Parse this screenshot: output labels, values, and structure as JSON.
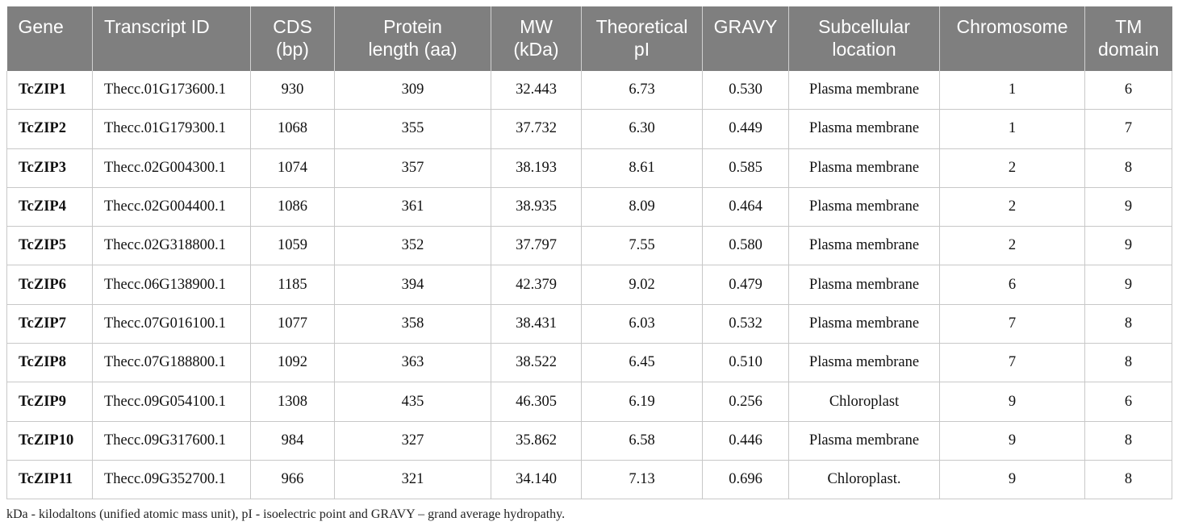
{
  "table": {
    "columns": [
      "Gene",
      "Transcript ID",
      "CDS (bp)",
      "Protein length (aa)",
      "MW (kDa)",
      "Theoretical pI",
      "GRAVY",
      "Subcellular location",
      "Chromosome",
      "TM domain"
    ],
    "rows": [
      [
        "TcZIP1",
        "Thecc.01G173600.1",
        "930",
        "309",
        "32.443",
        "6.73",
        "0.530",
        "Plasma membrane",
        "1",
        "6"
      ],
      [
        "TcZIP2",
        "Thecc.01G179300.1",
        "1068",
        "355",
        "37.732",
        "6.30",
        "0.449",
        "Plasma membrane",
        "1",
        "7"
      ],
      [
        "TcZIP3",
        "Thecc.02G004300.1",
        "1074",
        "357",
        "38.193",
        "8.61",
        "0.585",
        "Plasma membrane",
        "2",
        "8"
      ],
      [
        "TcZIP4",
        "Thecc.02G004400.1",
        "1086",
        "361",
        "38.935",
        "8.09",
        "0.464",
        "Plasma membrane",
        "2",
        "9"
      ],
      [
        "TcZIP5",
        "Thecc.02G318800.1",
        "1059",
        "352",
        "37.797",
        "7.55",
        "0.580",
        "Plasma membrane",
        "2",
        "9"
      ],
      [
        "TcZIP6",
        "Thecc.06G138900.1",
        "1185",
        "394",
        "42.379",
        "9.02",
        "0.479",
        "Plasma membrane",
        "6",
        "9"
      ],
      [
        "TcZIP7",
        "Thecc.07G016100.1",
        "1077",
        "358",
        "38.431",
        "6.03",
        "0.532",
        "Plasma membrane",
        "7",
        "8"
      ],
      [
        "TcZIP8",
        "Thecc.07G188800.1",
        "1092",
        "363",
        "38.522",
        "6.45",
        "0.510",
        "Plasma membrane",
        "7",
        "8"
      ],
      [
        "TcZIP9",
        "Thecc.09G054100.1",
        "1308",
        "435",
        "46.305",
        "6.19",
        "0.256",
        "Chloroplast",
        "9",
        "6"
      ],
      [
        "TcZIP10",
        "Thecc.09G317600.1",
        "984",
        "327",
        "35.862",
        "6.58",
        "0.446",
        "Plasma membrane",
        "9",
        "8"
      ],
      [
        "TcZIP11",
        "Thecc.09G352700.1",
        "966",
        "321",
        "34.140",
        "7.13",
        "0.696",
        "Chloroplast.",
        "9",
        "8"
      ]
    ]
  },
  "footnote": "kDa - kilodaltons (unified atomic mass unit), pI - isoelectric point and GRAVY – grand average hydropathy.",
  "colors": {
    "header_bg": "#7f7f7f",
    "header_text": "#ffffff",
    "grid": "#c8c8c8"
  }
}
